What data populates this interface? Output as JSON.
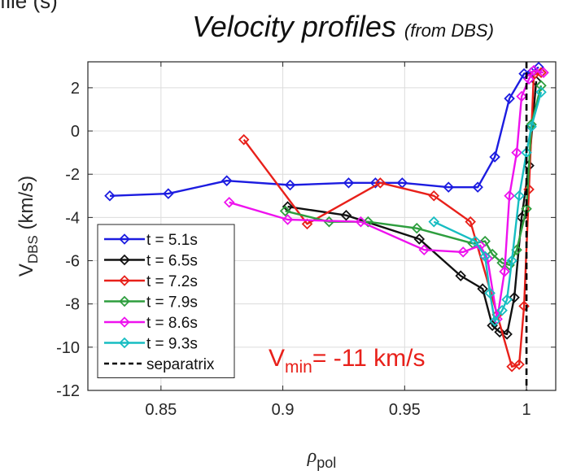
{
  "page_label": "file (s)",
  "chart_data": {
    "type": "line",
    "title": "Velocity profiles",
    "subtitle": "(from DBS)",
    "xlabel": {
      "base": "ρ",
      "sub": "pol"
    },
    "ylabel": {
      "base": "V",
      "sub": "DBS",
      "rest": " (km/s)"
    },
    "xlim": [
      0.82,
      1.012
    ],
    "ylim": [
      -12,
      3.2
    ],
    "xticks": [
      "0.85",
      "0.9",
      "0.95",
      "1"
    ],
    "xtick_values": [
      0.85,
      0.9,
      0.95,
      1.0
    ],
    "yticks": [
      "2",
      "0",
      "-2",
      "-4",
      "-6",
      "-8",
      "-10",
      "-12"
    ],
    "ytick_values": [
      2,
      0,
      -2,
      -4,
      -6,
      -8,
      -10,
      -12
    ],
    "grid": true,
    "legend_placement": "bottom-left",
    "annotation": {
      "text_base": "V",
      "text_sub": "min",
      "text_rest": "= -11 km/s",
      "color": "#e8201a"
    },
    "series": [
      {
        "name": "t = 5.1s",
        "color": "#1c1ce0",
        "x": [
          0.829,
          0.853,
          0.877,
          0.903,
          0.927,
          0.938,
          0.949,
          0.968,
          0.98,
          0.987,
          0.993,
          0.999,
          1.002,
          1.005
        ],
        "y": [
          -3.0,
          -2.9,
          -2.3,
          -2.5,
          -2.4,
          -2.4,
          -2.4,
          -2.6,
          -2.6,
          -1.2,
          1.5,
          2.65,
          2.7,
          2.95
        ]
      },
      {
        "name": "t = 6.5s",
        "color": "#111111",
        "x": [
          0.902,
          0.926,
          0.956,
          0.973,
          0.982,
          0.986,
          0.989,
          0.992,
          0.995,
          0.998,
          1.001,
          1.004
        ],
        "y": [
          -3.5,
          -3.9,
          -5.0,
          -6.7,
          -7.3,
          -9.0,
          -9.3,
          -9.4,
          -7.7,
          -4.0,
          -1.6,
          2.3
        ]
      },
      {
        "name": "t = 7.2s",
        "color": "#e8201a",
        "x": [
          0.884,
          0.91,
          0.94,
          0.962,
          0.977,
          0.988,
          0.994,
          0.997,
          0.999,
          1.001,
          1.003,
          1.006
        ],
        "y": [
          -0.4,
          -4.3,
          -2.4,
          -3.0,
          -4.2,
          -8.5,
          -10.9,
          -10.8,
          -8.1,
          -2.7,
          2.6,
          2.7
        ]
      },
      {
        "name": "t = 7.9s",
        "color": "#2e9e3e",
        "x": [
          0.901,
          0.919,
          0.935,
          0.955,
          0.978,
          0.983,
          0.986,
          0.99,
          0.993,
          0.996,
          1.0,
          1.002,
          1.006
        ],
        "y": [
          -3.7,
          -4.2,
          -4.2,
          -4.5,
          -5.2,
          -5.1,
          -5.7,
          -6.1,
          -6.2,
          -5.5,
          -3.6,
          0.3,
          2.1
        ]
      },
      {
        "name": "t = 8.6s",
        "color": "#ee12ee",
        "x": [
          0.878,
          0.902,
          0.932,
          0.958,
          0.974,
          0.981,
          0.984,
          0.988,
          0.991,
          0.993,
          0.996,
          0.998,
          1.001,
          1.003,
          1.007
        ],
        "y": [
          -3.3,
          -4.1,
          -4.2,
          -5.5,
          -5.6,
          -5.3,
          -5.9,
          -8.7,
          -6.5,
          -3.0,
          -1.0,
          1.6,
          2.4,
          2.8,
          2.7
        ]
      },
      {
        "name": "t = 9.3s",
        "color": "#17bdc2",
        "x": [
          0.962,
          0.979,
          0.983,
          0.985,
          0.987,
          0.99,
          0.992,
          0.994,
          0.997,
          1.0,
          1.002,
          1.006
        ],
        "y": [
          -4.2,
          -5.1,
          -5.8,
          -7.5,
          -8.8,
          -8.3,
          -7.8,
          -6.0,
          -3.0,
          -1.0,
          0.2,
          1.8
        ]
      }
    ],
    "reference_lines": [
      {
        "name": "separatrix",
        "orientation": "vertical",
        "x": 1.0,
        "color": "#000000",
        "style": "dashed"
      }
    ]
  }
}
